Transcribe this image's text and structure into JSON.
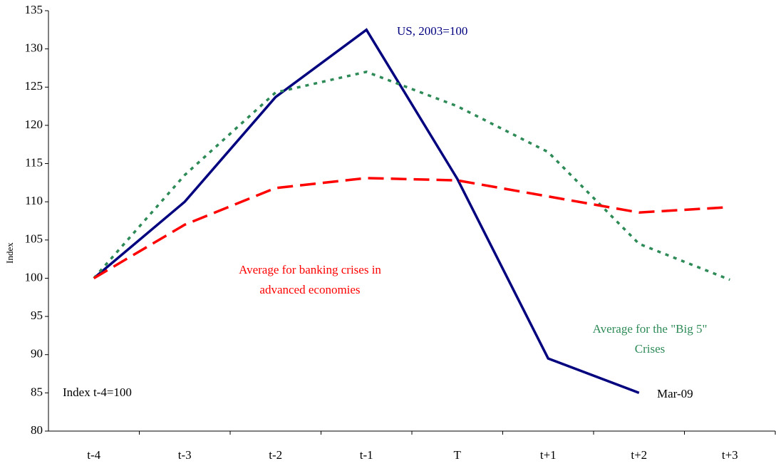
{
  "chart_data": {
    "type": "line",
    "y_label": "Index",
    "categories": [
      "t-4",
      "t-3",
      "t-2",
      "t-1",
      "T",
      "t+1",
      "t+2",
      "t+3"
    ],
    "series": [
      {
        "color": "#00007f",
        "dash": "solid",
        "values": [
          100,
          110,
          123.7,
          132.5,
          113,
          89.5,
          85,
          null
        ]
      },
      {
        "color": "#2e8b57",
        "dash": "dotted",
        "values": [
          100,
          113.5,
          124.3,
          127,
          122.5,
          116.5,
          104.5,
          99.8
        ]
      },
      {
        "color": "#ff0000",
        "dash": "dashed",
        "values": [
          100,
          107,
          111.8,
          113.1,
          112.8,
          110.7,
          108.6,
          109.3
        ]
      }
    ],
    "annotations": [
      {
        "lines": [
          "US, 2003=100"
        ],
        "color": "#00007f"
      },
      {
        "lines": [
          "Average for banking crises in",
          "advanced economies"
        ],
        "color": "#ff0000"
      },
      {
        "lines": [
          "Average for the \"Big 5\"",
          "Crises"
        ],
        "color": "#2e8b57"
      },
      {
        "lines": [
          "Index t-4=100"
        ],
        "color": "#000000"
      },
      {
        "lines": [
          "Mar-09"
        ],
        "color": "#000000"
      }
    ],
    "ylim": [
      80,
      135
    ],
    "yticks": [
      80,
      85,
      90,
      95,
      100,
      105,
      110,
      115,
      120,
      125,
      130,
      135
    ],
    "grid": false
  }
}
